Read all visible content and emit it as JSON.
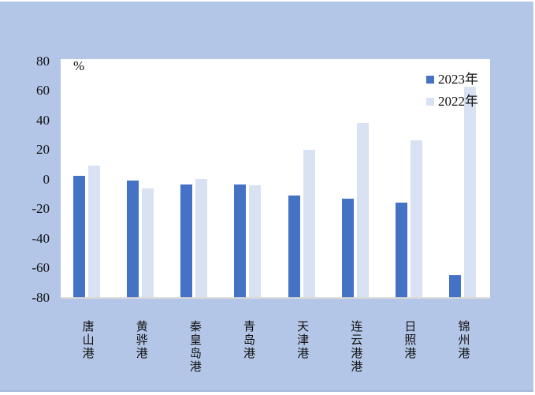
{
  "chart_data": {
    "type": "bar",
    "title": "",
    "unit_label": "%",
    "categories": [
      "唐山港",
      "黄骅港",
      "秦皇岛港",
      "青岛港",
      "天津港",
      "连云港港",
      "日照港",
      "锦州港"
    ],
    "series": [
      {
        "name": "2023年",
        "color": "#4472c4",
        "values": [
          2,
          -1,
          -3.5,
          -3.5,
          -11,
          -13.5,
          -16,
          -65
        ]
      },
      {
        "name": "2022年",
        "color": "#d9e2f3",
        "values": [
          9,
          -6.5,
          0,
          -4,
          20,
          38,
          26,
          62.5
        ]
      }
    ],
    "ylim": [
      -80,
      80
    ],
    "ytick_step": 20,
    "ytick_labels": [
      "80",
      "60",
      "40",
      "20",
      "0",
      "-20",
      "-40",
      "-60",
      "-80"
    ],
    "ytick_values": [
      80,
      60,
      40,
      20,
      0,
      -20,
      -40,
      -60,
      -80
    ],
    "xlabel": "",
    "ylabel": "",
    "grid": false,
    "legend_position": "top-right",
    "x_labels_orientation": "vertical",
    "bars_drawn_from_axis_minimum": true
  },
  "colors": {
    "page_background": "#b4c6e7",
    "plot_background": "#ffffff",
    "series_2023": "#4472c4",
    "series_2022": "#d9e2f3",
    "axis_line": "#d8d8d8",
    "text": "#111111",
    "bottom_border_line": "#a4b8dd",
    "edge_strips": "#ffffff"
  }
}
